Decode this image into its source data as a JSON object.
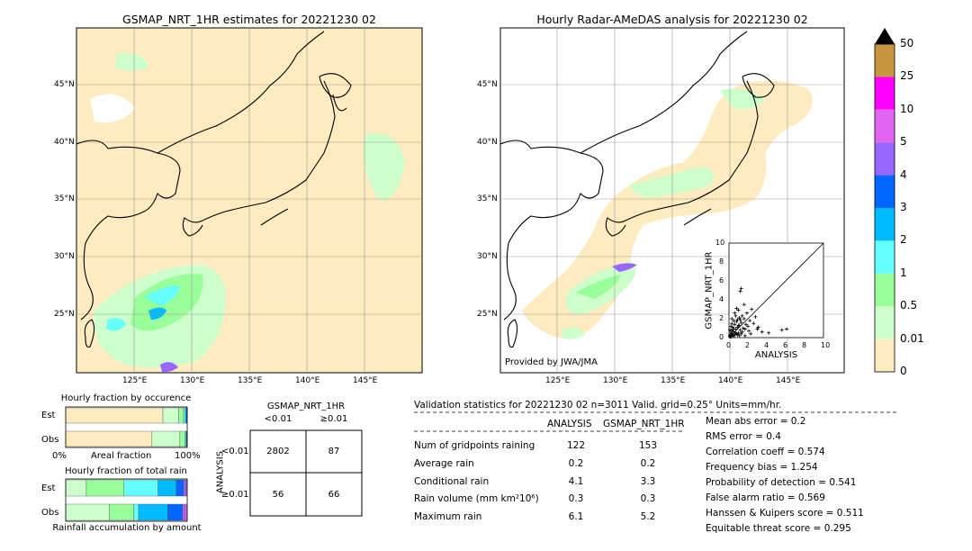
{
  "left_map": {
    "title": "GSMAP_NRT_1HR estimates for 20221230 02",
    "lat_labels": [
      "45°N",
      "40°N",
      "35°N",
      "30°N",
      "25°N"
    ],
    "lon_labels": [
      "125°E",
      "130°E",
      "135°E",
      "140°E",
      "145°E"
    ]
  },
  "right_map": {
    "title": "Hourly Radar-AMeDAS analysis for 20221230 02",
    "lat_labels": [
      "45°N",
      "40°N",
      "35°N",
      "30°N",
      "25°N"
    ],
    "lon_labels": [
      "125°E",
      "130°E",
      "135°E",
      "140°E",
      "145°E"
    ],
    "credit": "Provided by JWA/JMA"
  },
  "colorbar": {
    "labels": [
      "50",
      "25",
      "10",
      "5",
      "4",
      "3",
      "2",
      "1",
      "0.5",
      "0.01",
      "0"
    ],
    "colors": [
      "#c8963c",
      "#ff00ff",
      "#e066f0",
      "#9966ff",
      "#0066ff",
      "#00bbff",
      "#66ffff",
      "#99ff99",
      "#ccffcc",
      "#ffebc0"
    ],
    "over_color": "#000000"
  },
  "occurrence": {
    "title": "Hourly fraction by occurence",
    "row_est": "Est",
    "row_obs": "Obs",
    "axis_left": "0%",
    "axis_mid": "Areal fraction",
    "axis_right": "100%"
  },
  "total_rain": {
    "title": "Hourly fraction of total rain",
    "row_est": "Est",
    "row_obs": "Obs",
    "footer": "Rainfall accumulation by amount"
  },
  "contingency": {
    "col_title": "GSMAP_NRT_1HR",
    "col_lt": "<0.01",
    "col_ge": "≥0.01",
    "row_title": "ANALYSIS",
    "row_lt": "<0.01",
    "row_ge": "≥0.01",
    "cells": [
      "2802",
      "87",
      "56",
      "66"
    ]
  },
  "validation": {
    "header": "Validation statistics for 20221230 02  n=3011 Valid. grid=0.25° Units=mm/hr.",
    "col_analysis": "ANALYSIS",
    "col_gsmap": "GSMAP_NRT_1HR",
    "rows": [
      {
        "label": "Num of gridpoints raining",
        "analysis": "122",
        "gsmap": "153"
      },
      {
        "label": "Average rain",
        "analysis": "0.2",
        "gsmap": "0.2"
      },
      {
        "label": "Conditional rain",
        "analysis": "4.1",
        "gsmap": "3.3"
      },
      {
        "label": "Rain volume (mm km²10⁶)",
        "analysis": "0.3",
        "gsmap": "0.3"
      },
      {
        "label": "Maximum rain",
        "analysis": "6.1",
        "gsmap": "5.2"
      }
    ],
    "scores": [
      "Mean abs error =    0.2",
      "RMS error =    0.4",
      "Correlation coeff =  0.574",
      "Frequency bias =  1.254",
      "Probability of detection =  0.541",
      "False alarm ratio =  0.569",
      "Hanssen & Kuipers score =  0.511",
      "Equitable threat score =  0.295"
    ]
  },
  "chart_data": [
    {
      "type": "scatter",
      "xlabel": "ANALYSIS",
      "ylabel": "GSMAP_NRT_1HR",
      "xlim": [
        0,
        10
      ],
      "ylim": [
        0,
        10
      ],
      "x_ticks": [
        "0",
        "2",
        "4",
        "6",
        "8",
        "10"
      ],
      "y_ticks": [
        "0",
        "2",
        "4",
        "6",
        "8",
        "10"
      ],
      "points": [
        [
          0.1,
          0.2
        ],
        [
          0.2,
          0.1
        ],
        [
          0.3,
          0.4
        ],
        [
          0.4,
          0.2
        ],
        [
          0.5,
          0.6
        ],
        [
          0.6,
          0.3
        ],
        [
          0.7,
          0.9
        ],
        [
          0.8,
          0.4
        ],
        [
          0.9,
          1.1
        ],
        [
          1.0,
          0.5
        ],
        [
          1.1,
          1.3
        ],
        [
          1.2,
          0.8
        ],
        [
          1.3,
          1.6
        ],
        [
          1.4,
          0.6
        ],
        [
          1.5,
          1.0
        ],
        [
          1.6,
          2.0
        ],
        [
          1.7,
          0.9
        ],
        [
          1.8,
          1.4
        ],
        [
          1.9,
          2.6
        ],
        [
          2.0,
          1.2
        ],
        [
          2.1,
          0.7
        ],
        [
          2.2,
          1.8
        ],
        [
          2.4,
          3.0
        ],
        [
          2.6,
          1.5
        ],
        [
          0.2,
          1.2
        ],
        [
          0.3,
          2.0
        ],
        [
          0.4,
          0.9
        ],
        [
          0.5,
          1.8
        ],
        [
          0.6,
          1.4
        ],
        [
          0.7,
          2.3
        ],
        [
          0.8,
          1.7
        ],
        [
          0.9,
          0.3
        ],
        [
          1.0,
          2.9
        ],
        [
          1.1,
          0.2
        ],
        [
          1.2,
          1.9
        ],
        [
          1.3,
          0.4
        ],
        [
          1.4,
          2.3
        ],
        [
          0.1,
          0.8
        ],
        [
          0.2,
          0.5
        ],
        [
          0.3,
          1.5
        ],
        [
          0.4,
          1.1
        ],
        [
          0.5,
          0.2
        ],
        [
          0.6,
          2.6
        ],
        [
          0.7,
          0.5
        ],
        [
          0.8,
          3.1
        ],
        [
          0.9,
          1.9
        ],
        [
          1.0,
          1.3
        ],
        [
          1.1,
          2.1
        ],
        [
          1.2,
          4.9
        ],
        [
          1.3,
          5.2
        ],
        [
          1.6,
          3.5
        ],
        [
          2.8,
          2.2
        ],
        [
          3.1,
          1.1
        ],
        [
          3.5,
          0.6
        ],
        [
          4.2,
          0.5
        ],
        [
          5.6,
          0.8
        ],
        [
          6.1,
          0.9
        ],
        [
          3.0,
          0.9
        ],
        [
          2.3,
          0.4
        ],
        [
          1.7,
          0.2
        ],
        [
          0.1,
          0.1
        ],
        [
          0.2,
          0.3
        ],
        [
          0.3,
          0.7
        ],
        [
          0.5,
          0.9
        ]
      ]
    },
    {
      "type": "bar",
      "title": "Hourly fraction by occurence",
      "orientation": "horizontal-stacked",
      "categories": [
        "Est",
        "Obs"
      ],
      "series": [
        {
          "color": "#ffebc0",
          "values": [
            0.8,
            0.71
          ]
        },
        {
          "color": "#ccffcc",
          "values": [
            0.13,
            0.23
          ]
        },
        {
          "color": "#99ff99",
          "values": [
            0.04,
            0.04
          ]
        },
        {
          "color": "#66ffff",
          "values": [
            0.015,
            0.01
          ]
        },
        {
          "color": "#00bbff",
          "values": [
            0.01,
            0.005
          ]
        },
        {
          "color": "#0066ff",
          "values": [
            0.005,
            0.005
          ]
        }
      ]
    },
    {
      "type": "bar",
      "title": "Hourly fraction of total rain",
      "orientation": "horizontal-stacked",
      "categories": [
        "Est",
        "Obs"
      ],
      "series": [
        {
          "color": "#ccffcc",
          "values": [
            0.17,
            0.36
          ]
        },
        {
          "color": "#99ff99",
          "values": [
            0.31,
            0.2
          ]
        },
        {
          "color": "#66ffff",
          "values": [
            0.28,
            0.04
          ]
        },
        {
          "color": "#00bbff",
          "values": [
            0.15,
            0.24
          ]
        },
        {
          "color": "#0066ff",
          "values": [
            0.06,
            0.12
          ]
        },
        {
          "color": "#9966ff",
          "values": [
            0.02,
            0.02
          ]
        },
        {
          "color": "#e066f0",
          "values": [
            0.01,
            0.02
          ]
        }
      ]
    }
  ]
}
